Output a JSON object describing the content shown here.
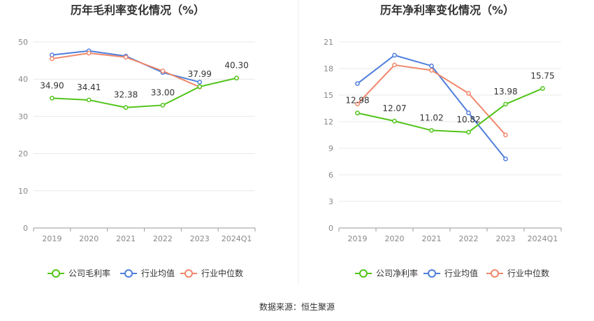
{
  "source_text": "数据来源：恒生聚源",
  "colors": {
    "company": "#52c41a",
    "industry_avg": "#4f7fdb",
    "industry_median": "#f0876a",
    "grid": "#e8e8e8",
    "axis": "#999999",
    "divider": "#eeeeee"
  },
  "chart_data": [
    {
      "type": "line",
      "title": "历年毛利率变化情况（%）",
      "categories": [
        "2019",
        "2020",
        "2021",
        "2022",
        "2023",
        "2024Q1"
      ],
      "ylim": [
        0,
        50
      ],
      "yticks": [
        0,
        10,
        20,
        30,
        40,
        50
      ],
      "grid": true,
      "legend_position": "bottom",
      "series": [
        {
          "name": "公司毛利率",
          "role": "company",
          "values": [
            34.9,
            34.41,
            32.38,
            33.0,
            37.99,
            40.3
          ],
          "labels": [
            "34.90",
            "34.41",
            "32.38",
            "33.00",
            "37.99",
            "40.30"
          ]
        },
        {
          "name": "行业均值",
          "role": "industry_avg",
          "values": [
            46.5,
            47.6,
            46.2,
            41.8,
            39.2,
            null
          ]
        },
        {
          "name": "行业中位数",
          "role": "industry_median",
          "values": [
            45.5,
            47.0,
            45.9,
            42.2,
            37.9,
            null
          ]
        }
      ]
    },
    {
      "type": "line",
      "title": "历年净利率变化情况（%）",
      "categories": [
        "2019",
        "2020",
        "2021",
        "2022",
        "2023",
        "2024Q1"
      ],
      "ylim": [
        0,
        21
      ],
      "yticks": [
        0,
        3,
        6,
        9,
        12,
        15,
        18,
        21
      ],
      "grid": true,
      "legend_position": "bottom",
      "series": [
        {
          "name": "公司净利率",
          "role": "company",
          "values": [
            12.98,
            12.07,
            11.02,
            10.82,
            13.98,
            15.75
          ],
          "labels": [
            "12.98",
            "12.07",
            "11.02",
            "10.82",
            "13.98",
            "15.75"
          ]
        },
        {
          "name": "行业均值",
          "role": "industry_avg",
          "values": [
            16.3,
            19.5,
            18.3,
            13.0,
            7.8,
            null
          ]
        },
        {
          "name": "行业中位数",
          "role": "industry_median",
          "values": [
            14.0,
            18.4,
            17.8,
            15.2,
            10.5,
            null
          ]
        }
      ]
    }
  ]
}
